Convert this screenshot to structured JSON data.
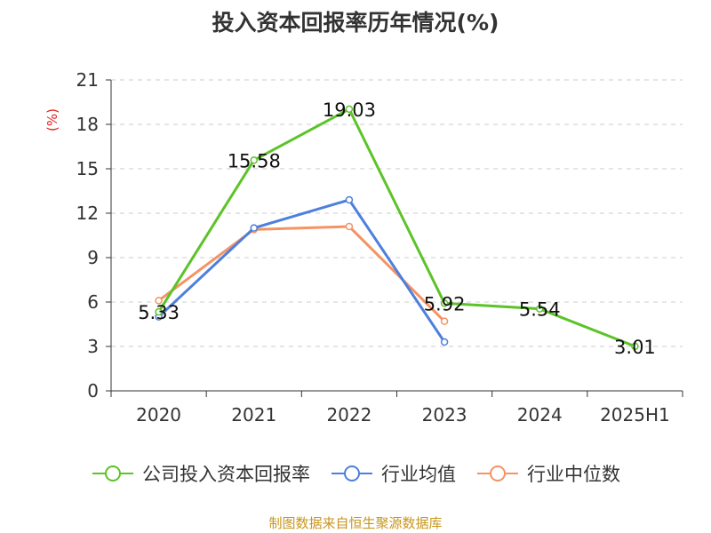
{
  "title": "投入资本回报率历年情况(%)",
  "unit_label": "(%)",
  "source": "制图数据来自恒生聚源数据库",
  "chart_data": {
    "type": "line",
    "title": "投入资本回报率历年情况(%)",
    "ylabel": "(%)",
    "categories": [
      "2020",
      "2021",
      "2022",
      "2023",
      "2024",
      "2025H1"
    ],
    "ylim": [
      0,
      21
    ],
    "yticks": [
      0,
      3,
      6,
      9,
      12,
      15,
      18,
      21
    ],
    "grid": true,
    "legend_position": "bottom",
    "series": [
      {
        "name": "公司投入资本回报率",
        "color": "#5cc328",
        "values": [
          5.33,
          15.58,
          19.03,
          5.92,
          5.54,
          3.01
        ],
        "labels": [
          "5.33",
          "15.58",
          "19.03",
          "5.92",
          "5.54",
          "3.01"
        ]
      },
      {
        "name": "行业均值",
        "color": "#4e7fdc",
        "values": [
          5.0,
          11.0,
          12.9,
          3.3,
          null,
          null
        ]
      },
      {
        "name": "行业中位数",
        "color": "#f59364",
        "values": [
          6.1,
          10.9,
          11.1,
          4.7,
          null,
          null
        ]
      }
    ]
  }
}
